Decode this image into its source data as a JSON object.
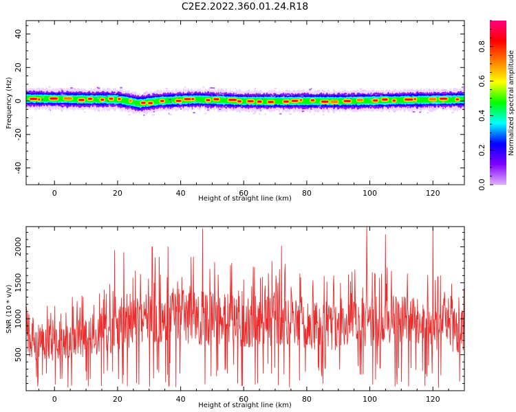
{
  "title": "C2E2.2022.360.01.24.R18",
  "chart_data": [
    {
      "type": "heatmap",
      "xlabel": "Height of straight line (km)",
      "ylabel": "Frequency (Hz)",
      "xlim": [
        -9,
        130
      ],
      "ylim": [
        -50,
        48
      ],
      "xticks": [
        0,
        20,
        40,
        60,
        80,
        100,
        120
      ],
      "yticks": [
        -40,
        -20,
        0,
        20,
        40
      ],
      "colorbar": {
        "label": "Normalized spectral amplitude",
        "range": [
          0,
          0.95
        ],
        "ticks": [
          0.0,
          0.2,
          0.4,
          0.6,
          0.8
        ],
        "colormap": "gist_rainbow_r",
        "stops": [
          "#e0b0ff",
          "#8000ff",
          "#0000ff",
          "#00ffff",
          "#00ff00",
          "#ffff00",
          "#ff8000",
          "#ff0000",
          "#ff0080"
        ]
      },
      "band": {
        "center_hz": 0.5,
        "halfwidth_hz": 5,
        "center_track_km": [
          -9,
          10,
          20,
          27,
          33,
          45,
          60,
          80,
          95,
          110,
          130
        ],
        "center_track_hz": [
          1.5,
          1.0,
          1.0,
          -1.5,
          0.0,
          1.0,
          0.0,
          0.0,
          0.0,
          0.5,
          1.0
        ]
      }
    },
    {
      "type": "line",
      "xlabel": "Height of straight line (km)",
      "ylabel": "SNR (10 * v/v)",
      "xlim": [
        -9,
        130
      ],
      "ylim": [
        0,
        2280
      ],
      "xticks": [
        0,
        20,
        40,
        60,
        80,
        100,
        120
      ],
      "yticks": [
        500,
        1000,
        1500,
        2000
      ],
      "series": [
        {
          "color": "#ee2a2a",
          "trend_km": [
            -9,
            0,
            10,
            20,
            30,
            40,
            50,
            60,
            70,
            80,
            90,
            100,
            110,
            120,
            130
          ],
          "trend_snr": [
            700,
            650,
            750,
            850,
            1000,
            1050,
            1000,
            950,
            1000,
            900,
            900,
            950,
            950,
            900,
            800
          ],
          "peaks_km": [
            19,
            22,
            31,
            36,
            47,
            72,
            99,
            105,
            120
          ],
          "peaks_snr": [
            1950,
            1920,
            2000,
            2000,
            2250,
            2010,
            2270,
            2170,
            2260
          ]
        }
      ]
    }
  ]
}
